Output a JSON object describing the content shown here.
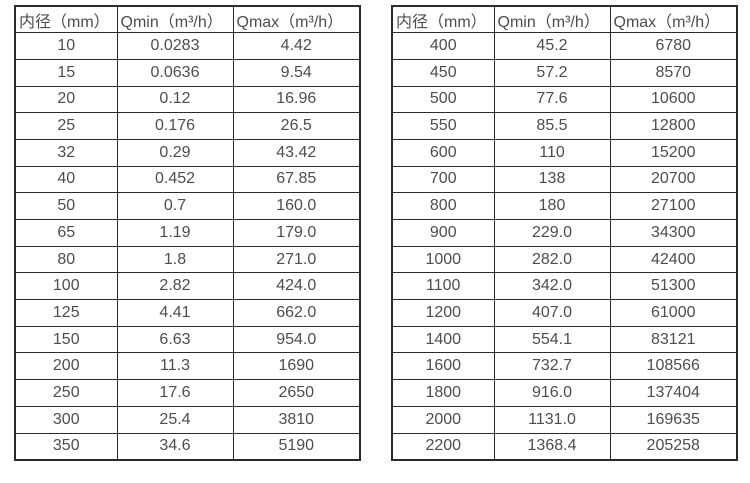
{
  "page": {
    "background_color": "#ffffff",
    "text_color": "#4d4d4d",
    "border_color": "#2b2b2b"
  },
  "tables": [
    {
      "name": "flow-rate-table-small-diameter",
      "headers": [
        "内径（mm）",
        "Qmin（m³/h）",
        "Qmax（m³/h）"
      ],
      "rows": [
        [
          "10",
          "0.0283",
          "4.42"
        ],
        [
          "15",
          "0.0636",
          "9.54"
        ],
        [
          "20",
          "0.12",
          "16.96"
        ],
        [
          "25",
          "0.176",
          "26.5"
        ],
        [
          "32",
          "0.29",
          "43.42"
        ],
        [
          "40",
          "0.452",
          "67.85"
        ],
        [
          "50",
          "0.7",
          "160.0"
        ],
        [
          "65",
          "1.19",
          "179.0"
        ],
        [
          "80",
          "1.8",
          "271.0"
        ],
        [
          "100",
          "2.82",
          "424.0"
        ],
        [
          "125",
          "4.41",
          "662.0"
        ],
        [
          "150",
          "6.63",
          "954.0"
        ],
        [
          "200",
          "11.3",
          "1690"
        ],
        [
          "250",
          "17.6",
          "2650"
        ],
        [
          "300",
          "25.4",
          "3810"
        ],
        [
          "350",
          "34.6",
          "5190"
        ]
      ]
    },
    {
      "name": "flow-rate-table-large-diameter",
      "headers": [
        "内径（mm）",
        "Qmin（m³/h）",
        "Qmax（m³/h）"
      ],
      "rows": [
        [
          "400",
          "45.2",
          "6780"
        ],
        [
          "450",
          "57.2",
          "8570"
        ],
        [
          "500",
          "77.6",
          "10600"
        ],
        [
          "550",
          "85.5",
          "12800"
        ],
        [
          "600",
          "110",
          "15200"
        ],
        [
          "700",
          "138",
          "20700"
        ],
        [
          "800",
          "180",
          "27100"
        ],
        [
          "900",
          "229.0",
          "34300"
        ],
        [
          "1000",
          "282.0",
          "42400"
        ],
        [
          "1100",
          "342.0",
          "51300"
        ],
        [
          "1200",
          "407.0",
          "61000"
        ],
        [
          "1400",
          "554.1",
          "83121"
        ],
        [
          "1600",
          "732.7",
          "108566"
        ],
        [
          "1800",
          "916.0",
          "137404"
        ],
        [
          "2000",
          "1131.0",
          "169635"
        ],
        [
          "2200",
          "1368.4",
          "205258"
        ]
      ]
    }
  ]
}
